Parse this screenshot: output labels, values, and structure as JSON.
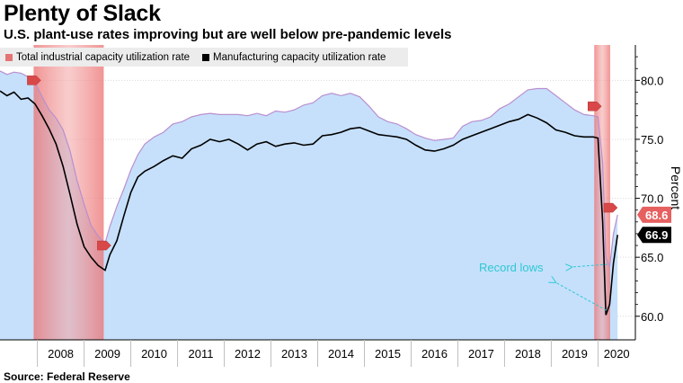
{
  "title": "Plenty of Slack",
  "subtitle": "U.S. plant-use rates improving but are well below pre-pandemic levels",
  "source": "Source: Federal Reserve",
  "chart_data": {
    "type": "area",
    "ylabel": "Percent",
    "ylim": [
      58.0,
      83.0
    ],
    "yticks": [
      60.0,
      65.0,
      70.0,
      75.0,
      80.0
    ],
    "ytick_labels": [
      "60.0",
      "65.0",
      "70.0",
      "75.0",
      "80.0"
    ],
    "x_range": [
      2007.2,
      2020.8
    ],
    "xtick_labels": [
      "2008",
      "2009",
      "2010",
      "2011",
      "2012",
      "2013",
      "2014",
      "2015",
      "2016",
      "2017",
      "2018",
      "2019",
      "2020"
    ],
    "xtick_positions": [
      2008.5,
      2009.5,
      2010.5,
      2011.5,
      2012.5,
      2013.5,
      2014.5,
      2015.5,
      2016.5,
      2017.5,
      2018.5,
      2019.5,
      2020.4
    ],
    "legend_position": "top-left",
    "recessions": [
      [
        2007.92,
        2009.42
      ],
      [
        2019.92,
        2020.26
      ]
    ],
    "markers": [
      {
        "x": 2007.92,
        "y": 80.0
      },
      {
        "x": 2009.42,
        "y": 66.0
      },
      {
        "x": 2019.92,
        "y": 77.8
      },
      {
        "x": 2020.26,
        "y": 69.2
      }
    ],
    "last_value_labels": [
      {
        "series": 0,
        "label": "68.6",
        "color": "#e66060"
      },
      {
        "series": 1,
        "label": "66.9",
        "color": "#000000"
      }
    ],
    "annotations": [
      {
        "text": "Record lows",
        "color": "#2ec8d4",
        "arrow_to": [
          [
            2020.2,
            64.4
          ],
          [
            2020.18,
            60.5
          ]
        ]
      }
    ],
    "series": [
      {
        "name": "Total industrial capacity utilization rate",
        "color": "#e47474",
        "fill": "#c6e0fb",
        "line": "#b98fcf",
        "x": [
          2007.2,
          2007.35,
          2007.5,
          2007.65,
          2007.8,
          2007.95,
          2008.1,
          2008.25,
          2008.4,
          2008.55,
          2008.7,
          2008.85,
          2009.0,
          2009.15,
          2009.3,
          2009.45,
          2009.55,
          2009.7,
          2009.85,
          2010.0,
          2010.15,
          2010.3,
          2010.5,
          2010.7,
          2010.9,
          2011.1,
          2011.3,
          2011.5,
          2011.7,
          2011.9,
          2012.1,
          2012.3,
          2012.5,
          2012.7,
          2012.9,
          2013.1,
          2013.3,
          2013.5,
          2013.7,
          2013.9,
          2014.1,
          2014.3,
          2014.5,
          2014.7,
          2014.9,
          2015.1,
          2015.3,
          2015.5,
          2015.7,
          2015.9,
          2016.1,
          2016.3,
          2016.5,
          2016.7,
          2016.9,
          2017.1,
          2017.3,
          2017.5,
          2017.7,
          2017.9,
          2018.1,
          2018.3,
          2018.5,
          2018.7,
          2018.9,
          2019.1,
          2019.3,
          2019.5,
          2019.7,
          2019.9,
          2020.0,
          2020.1,
          2020.17,
          2020.25,
          2020.33,
          2020.42
        ],
        "values": [
          80.8,
          80.5,
          80.7,
          80.6,
          80.3,
          79.8,
          78.6,
          77.5,
          76.8,
          75.8,
          74.0,
          71.5,
          69.5,
          67.7,
          66.8,
          66.2,
          67.6,
          69.3,
          70.8,
          72.4,
          73.7,
          74.6,
          75.2,
          75.6,
          76.3,
          76.5,
          76.9,
          77.1,
          77.2,
          77.1,
          77.1,
          77.1,
          77.0,
          77.2,
          77.0,
          77.4,
          77.3,
          77.5,
          77.9,
          78.1,
          78.7,
          78.9,
          78.7,
          78.9,
          78.6,
          77.8,
          76.9,
          76.5,
          76.3,
          75.9,
          75.4,
          75.1,
          74.9,
          75.0,
          75.1,
          76.1,
          76.5,
          76.6,
          76.9,
          77.6,
          78.0,
          78.6,
          79.2,
          79.3,
          79.3,
          78.7,
          78.1,
          77.5,
          77.1,
          77.0,
          76.9,
          73.0,
          65.0,
          64.2,
          67.0,
          68.6
        ]
      },
      {
        "name": "Manufacturing capacity utilization rate",
        "color": "#000000",
        "x": [
          2007.2,
          2007.35,
          2007.5,
          2007.65,
          2007.8,
          2007.95,
          2008.1,
          2008.25,
          2008.4,
          2008.55,
          2008.7,
          2008.85,
          2009.0,
          2009.15,
          2009.3,
          2009.45,
          2009.55,
          2009.7,
          2009.85,
          2010.0,
          2010.15,
          2010.3,
          2010.5,
          2010.7,
          2010.9,
          2011.1,
          2011.3,
          2011.5,
          2011.7,
          2011.9,
          2012.1,
          2012.3,
          2012.5,
          2012.7,
          2012.9,
          2013.1,
          2013.3,
          2013.5,
          2013.7,
          2013.9,
          2014.1,
          2014.3,
          2014.5,
          2014.7,
          2014.9,
          2015.1,
          2015.3,
          2015.5,
          2015.7,
          2015.9,
          2016.1,
          2016.3,
          2016.5,
          2016.7,
          2016.9,
          2017.1,
          2017.3,
          2017.5,
          2017.7,
          2017.9,
          2018.1,
          2018.3,
          2018.5,
          2018.7,
          2018.9,
          2019.1,
          2019.3,
          2019.5,
          2019.7,
          2019.9,
          2020.0,
          2020.1,
          2020.17,
          2020.25,
          2020.33,
          2020.42
        ],
        "values": [
          79.1,
          78.7,
          79.0,
          78.4,
          78.5,
          78.0,
          77.0,
          75.9,
          74.6,
          72.7,
          70.3,
          67.8,
          65.9,
          65.0,
          64.3,
          63.9,
          65.2,
          66.4,
          68.5,
          70.5,
          71.8,
          72.3,
          72.7,
          73.2,
          73.6,
          73.4,
          74.2,
          74.5,
          75.0,
          74.8,
          75.0,
          74.6,
          74.1,
          74.6,
          74.8,
          74.4,
          74.6,
          74.7,
          74.5,
          74.6,
          75.3,
          75.4,
          75.6,
          75.9,
          76.0,
          75.7,
          75.4,
          75.3,
          75.2,
          75.0,
          74.5,
          74.1,
          74.0,
          74.2,
          74.5,
          75.0,
          75.3,
          75.6,
          75.9,
          76.2,
          76.5,
          76.7,
          77.1,
          76.8,
          76.4,
          75.8,
          75.6,
          75.3,
          75.2,
          75.2,
          75.1,
          68.0,
          60.1,
          61.0,
          64.5,
          66.9
        ]
      }
    ]
  }
}
